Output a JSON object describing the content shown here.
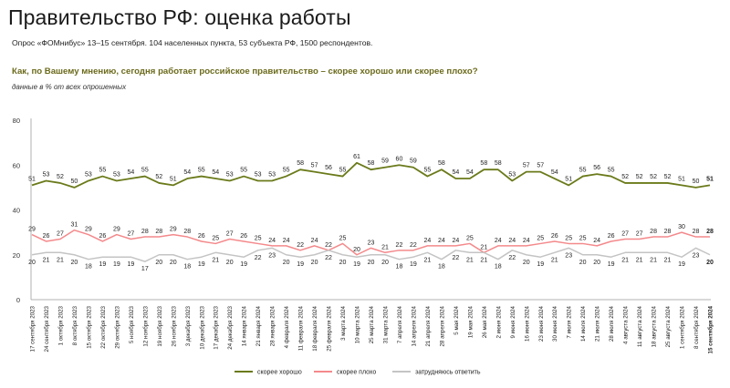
{
  "header": {
    "title": "Правительство РФ: оценка работы",
    "subtitle": "Опрос «ФОМнибус» 13–15 сентября. 104 населенных пункта, 53 субъекта РФ, 1500 респондентов.",
    "question": "Как, по Вашему мнению, сегодня работает российское правительство – скорее хорошо или скорее плохо?",
    "note": "данные в % от всех опрошенных"
  },
  "colors": {
    "good": "#6b7a1a",
    "bad": "#f4898b",
    "hard": "#c4c4c4",
    "axis": "#b0b0b0"
  },
  "chart_data": {
    "type": "line",
    "title": "Правительство РФ: оценка работы",
    "ylim": [
      0,
      80
    ],
    "yticks": [
      0,
      20,
      40,
      60,
      80
    ],
    "grid": false,
    "legend_placement": "bottom",
    "x": [
      "17 сентября 2023",
      "24 сентября 2023",
      "1 октября 2023",
      "8 октября 2023",
      "15 октября 2023",
      "22 октября 2023",
      "29 октября 2023",
      "5 ноября 2023",
      "12 ноября 2023",
      "19 ноября 2023",
      "26 ноября 2023",
      "3 декабря 2023",
      "10 декабря 2023",
      "17 декабря 2023",
      "24 декабря 2023",
      "14 января 2024",
      "21 января 2024",
      "28 января 2024",
      "4 февраля 2024",
      "11 февраля 2024",
      "18 февраля 2024",
      "25 февраля 2024",
      "3 марта 2024",
      "10 марта 2024",
      "25 марта 2024",
      "31 марта 2024",
      "7 апреля 2024",
      "14 апреля 2024",
      "21 апреля 2024",
      "28 апреля 2024",
      "5 мая 2024",
      "19 мая 2024",
      "26 мая 2024",
      "2 июня 2024",
      "9 июня 2024",
      "16 июня 2024",
      "23 июня 2024",
      "30 июня 2024",
      "7 июля 2024",
      "14 июля 2024",
      "21 июля 2024",
      "28 июля 2024",
      "4 августа 2024",
      "11 августа 2024",
      "18 августа 2024",
      "25 августа 2024",
      "1 сентября 2024",
      "8 сентября 2024",
      "15 сентября 2024"
    ],
    "series": [
      {
        "name": "скорее хорошо",
        "values": [
          51,
          53,
          52,
          50,
          53,
          55,
          53,
          54,
          55,
          52,
          51,
          54,
          55,
          54,
          53,
          55,
          53,
          53,
          55,
          58,
          57,
          56,
          55,
          61,
          58,
          59,
          60,
          59,
          55,
          58,
          54,
          54,
          58,
          58,
          53,
          57,
          57,
          54,
          51,
          55,
          56,
          55,
          52,
          52,
          52,
          52,
          51,
          50,
          51
        ]
      },
      {
        "name": "скорее плохо",
        "values": [
          29,
          26,
          27,
          31,
          29,
          26,
          29,
          27,
          28,
          28,
          29,
          28,
          26,
          25,
          27,
          26,
          25,
          24,
          24,
          22,
          24,
          22,
          25,
          20,
          23,
          21,
          22,
          22,
          24,
          24,
          24,
          25,
          21,
          24,
          24,
          24,
          25,
          26,
          25,
          25,
          24,
          26,
          27,
          27,
          28,
          28,
          30,
          28,
          28
        ]
      },
      {
        "name": "затрудняюсь ответить",
        "values": [
          20,
          21,
          21,
          20,
          18,
          19,
          19,
          19,
          17,
          20,
          20,
          18,
          19,
          21,
          20,
          19,
          22,
          23,
          20,
          19,
          20,
          22,
          20,
          19,
          20,
          20,
          18,
          19,
          21,
          18,
          22,
          21,
          21,
          18,
          22,
          20,
          19,
          21,
          23,
          20,
          20,
          19,
          21,
          21,
          21,
          21,
          19,
          23,
          20
        ]
      }
    ],
    "legend": [
      "скорее хорошо",
      "скорее плохо",
      "затрудняюсь ответить"
    ]
  }
}
